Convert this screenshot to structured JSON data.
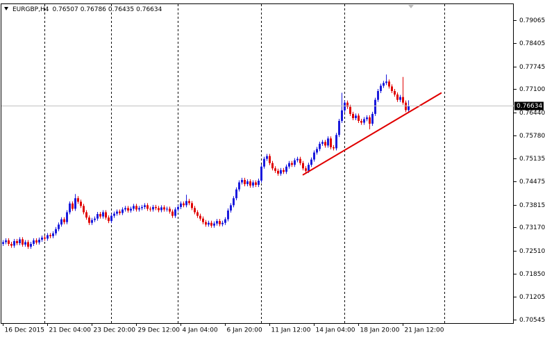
{
  "chart_data": {
    "type": "candlestick",
    "title": "EURGBP,H4",
    "categories": [
      "16 Dec 2015",
      null,
      null,
      null,
      null,
      null,
      null,
      null,
      null,
      null,
      null,
      null,
      null,
      null,
      null,
      null,
      "21 Dec 04:00",
      null,
      null,
      null,
      null,
      null,
      null,
      null,
      null,
      null,
      null,
      null,
      null,
      null,
      null,
      null,
      "23 Dec 20:00",
      null,
      null,
      null,
      null,
      null,
      null,
      null,
      null,
      null,
      null,
      null,
      null,
      null,
      null,
      null,
      "29 Dec 12:00",
      null,
      null,
      null,
      null,
      null,
      null,
      null,
      null,
      null,
      null,
      null,
      null,
      null,
      null,
      null,
      "4 Jan 04:00",
      null,
      null,
      null,
      null,
      null,
      null,
      null,
      null,
      null,
      null,
      null,
      null,
      null,
      null,
      null,
      "6 Jan 20:00",
      null,
      null,
      null,
      null,
      null,
      null,
      null,
      null,
      null,
      null,
      null,
      null,
      null,
      null,
      null,
      "11 Jan 12:00",
      null,
      null,
      null,
      null,
      null,
      null,
      null,
      null,
      null,
      null,
      null,
      null,
      null,
      null,
      null,
      "14 Jan 04:00",
      null,
      null,
      null,
      null,
      null,
      null,
      null,
      null,
      null,
      null,
      null,
      null,
      null,
      null,
      null,
      "18 Jan 20:00",
      null,
      null,
      null,
      null,
      null,
      null,
      null,
      null,
      null,
      null,
      null,
      null,
      null,
      null,
      null,
      "21 Jan 12:00",
      null,
      null
    ],
    "open": [
      0.727,
      0.7275,
      0.728,
      0.727,
      0.7265,
      0.7278,
      0.7272,
      0.7283,
      0.7268,
      0.7275,
      0.7262,
      0.727,
      0.728,
      0.7274,
      0.7282,
      0.7288,
      0.7285,
      0.7295,
      0.7292,
      0.73,
      0.7312,
      0.7325,
      0.734,
      0.7332,
      0.736,
      0.7385,
      0.737,
      0.74,
      0.739,
      0.7378,
      0.736,
      0.7345,
      0.733,
      0.7338,
      0.7342,
      0.7355,
      0.7348,
      0.736,
      0.7345,
      0.7335,
      0.735,
      0.7356,
      0.7362,
      0.7358,
      0.7368,
      0.7372,
      0.7365,
      0.737,
      0.7378,
      0.7368,
      0.7372,
      0.7375,
      0.738,
      0.737,
      0.7368,
      0.7375,
      0.7372,
      0.7366,
      0.7374,
      0.7368,
      0.737,
      0.7362,
      0.735,
      0.7368,
      0.7375,
      0.7385,
      0.738,
      0.7392,
      0.7386,
      0.7372,
      0.736,
      0.735,
      0.7342,
      0.7332,
      0.7325,
      0.733,
      0.7322,
      0.7328,
      0.7335,
      0.7326,
      0.733,
      0.734,
      0.7365,
      0.738,
      0.74,
      0.7425,
      0.7445,
      0.7452,
      0.744,
      0.7448,
      0.7436,
      0.7445,
      0.7438,
      0.745,
      0.749,
      0.7512,
      0.752,
      0.75,
      0.7485,
      0.7478,
      0.747,
      0.748,
      0.7475,
      0.749,
      0.75,
      0.7495,
      0.7508,
      0.7512,
      0.75,
      0.7485,
      0.7478,
      0.7495,
      0.751,
      0.753,
      0.754,
      0.7555,
      0.756,
      0.755,
      0.757,
      0.7545,
      0.7542,
      0.758,
      0.762,
      0.765,
      0.7672,
      0.766,
      0.764,
      0.7628,
      0.7635,
      0.762,
      0.7615,
      0.7625,
      0.763,
      0.7612,
      0.764,
      0.768,
      0.7705,
      0.772,
      0.7728,
      0.7732,
      0.7718,
      0.7705,
      0.7695,
      0.768,
      0.7688,
      0.7672,
      0.76507
    ],
    "high": [
      0.7281,
      0.7286,
      0.7286,
      0.7276,
      0.7284,
      0.7284,
      0.7289,
      0.7289,
      0.7281,
      0.7281,
      0.7276,
      0.7286,
      0.7286,
      0.7288,
      0.7294,
      0.7294,
      0.7301,
      0.7301,
      0.7306,
      0.7318,
      0.7331,
      0.7346,
      0.7346,
      0.7366,
      0.7391,
      0.7391,
      0.7412,
      0.7406,
      0.7396,
      0.7384,
      0.7366,
      0.7351,
      0.7344,
      0.7348,
      0.7361,
      0.7361,
      0.7366,
      0.7366,
      0.7351,
      0.7356,
      0.7362,
      0.7368,
      0.7368,
      0.7374,
      0.7378,
      0.7378,
      0.7376,
      0.7384,
      0.7384,
      0.7378,
      0.7381,
      0.7386,
      0.7386,
      0.7376,
      0.7381,
      0.7381,
      0.7378,
      0.738,
      0.738,
      0.7376,
      0.7376,
      0.7368,
      0.7374,
      0.7381,
      0.7391,
      0.7391,
      0.741,
      0.7398,
      0.7392,
      0.7378,
      0.7366,
      0.7356,
      0.7348,
      0.7338,
      0.7336,
      0.7336,
      0.7334,
      0.7341,
      0.7341,
      0.7336,
      0.7346,
      0.7371,
      0.7386,
      0.7406,
      0.7431,
      0.7451,
      0.7458,
      0.7458,
      0.7454,
      0.7454,
      0.7451,
      0.7451,
      0.7456,
      0.7496,
      0.7518,
      0.7526,
      0.7526,
      0.7506,
      0.7491,
      0.7484,
      0.7486,
      0.7486,
      0.7496,
      0.7506,
      0.7506,
      0.7514,
      0.7518,
      0.7518,
      0.7506,
      0.7491,
      0.7501,
      0.7516,
      0.7536,
      0.7546,
      0.7561,
      0.7566,
      0.7566,
      0.7576,
      0.7576,
      0.7551,
      0.7586,
      0.7626,
      0.77,
      0.7678,
      0.7678,
      0.7666,
      0.7646,
      0.7641,
      0.7641,
      0.7626,
      0.7631,
      0.7636,
      0.7636,
      0.7646,
      0.7686,
      0.7711,
      0.7726,
      0.7734,
      0.7752,
      0.7738,
      0.7724,
      0.7711,
      0.7701,
      0.7694,
      0.7745,
      0.7678,
      0.76786
    ],
    "low": [
      0.7264,
      0.7269,
      0.7264,
      0.7259,
      0.7259,
      0.7266,
      0.7266,
      0.7262,
      0.7262,
      0.7256,
      0.7256,
      0.7264,
      0.7268,
      0.7268,
      0.7276,
      0.7279,
      0.7279,
      0.7286,
      0.7286,
      0.7294,
      0.7306,
      0.7319,
      0.7326,
      0.7326,
      0.7354,
      0.7364,
      0.7364,
      0.7384,
      0.7372,
      0.7354,
      0.7339,
      0.7324,
      0.7324,
      0.7332,
      0.7336,
      0.7342,
      0.7342,
      0.7339,
      0.7329,
      0.7329,
      0.7344,
      0.735,
      0.7352,
      0.7352,
      0.7362,
      0.7359,
      0.7359,
      0.7364,
      0.7362,
      0.7362,
      0.7366,
      0.7369,
      0.7364,
      0.7362,
      0.7362,
      0.7366,
      0.736,
      0.736,
      0.7362,
      0.7362,
      0.7356,
      0.7344,
      0.7344,
      0.7362,
      0.7369,
      0.7374,
      0.7374,
      0.738,
      0.7366,
      0.7354,
      0.7344,
      0.7336,
      0.7326,
      0.7319,
      0.7319,
      0.7316,
      0.7316,
      0.7322,
      0.732,
      0.732,
      0.7324,
      0.7334,
      0.7359,
      0.7374,
      0.7394,
      0.7419,
      0.7439,
      0.7434,
      0.7434,
      0.743,
      0.743,
      0.7432,
      0.7432,
      0.7444,
      0.7484,
      0.7506,
      0.7494,
      0.7479,
      0.7472,
      0.7464,
      0.7464,
      0.7469,
      0.7469,
      0.7484,
      0.7489,
      0.7489,
      0.7502,
      0.7494,
      0.7479,
      0.7472,
      0.7472,
      0.7489,
      0.7504,
      0.7524,
      0.7534,
      0.7549,
      0.7544,
      0.7544,
      0.7539,
      0.7536,
      0.7536,
      0.7574,
      0.7614,
      0.7644,
      0.7654,
      0.7634,
      0.7622,
      0.7622,
      0.7614,
      0.7609,
      0.7609,
      0.7619,
      0.7596,
      0.7606,
      0.7634,
      0.7674,
      0.7699,
      0.7714,
      0.7722,
      0.7712,
      0.7699,
      0.7689,
      0.7674,
      0.7674,
      0.7666,
      0.7645,
      0.76435
    ],
    "close": [
      0.7275,
      0.728,
      0.727,
      0.7265,
      0.7278,
      0.7272,
      0.7283,
      0.7268,
      0.7275,
      0.7262,
      0.727,
      0.728,
      0.7274,
      0.7282,
      0.7288,
      0.7285,
      0.7295,
      0.7292,
      0.73,
      0.7312,
      0.7325,
      0.734,
      0.7332,
      0.736,
      0.7385,
      0.737,
      0.74,
      0.739,
      0.7378,
      0.736,
      0.7345,
      0.733,
      0.7338,
      0.7342,
      0.7355,
      0.7348,
      0.736,
      0.7345,
      0.7335,
      0.735,
      0.7356,
      0.7362,
      0.7358,
      0.7368,
      0.7372,
      0.7365,
      0.737,
      0.7378,
      0.7368,
      0.7372,
      0.7375,
      0.738,
      0.737,
      0.7368,
      0.7375,
      0.7372,
      0.7366,
      0.7374,
      0.7368,
      0.737,
      0.7362,
      0.735,
      0.7368,
      0.7375,
      0.7385,
      0.738,
      0.7392,
      0.7386,
      0.7372,
      0.736,
      0.735,
      0.7342,
      0.7332,
      0.7325,
      0.733,
      0.7322,
      0.7328,
      0.7335,
      0.7326,
      0.733,
      0.734,
      0.7365,
      0.738,
      0.74,
      0.7425,
      0.7445,
      0.7452,
      0.744,
      0.7448,
      0.7436,
      0.7445,
      0.7438,
      0.745,
      0.749,
      0.7512,
      0.752,
      0.75,
      0.7485,
      0.7478,
      0.747,
      0.748,
      0.7475,
      0.749,
      0.75,
      0.7495,
      0.7508,
      0.7512,
      0.75,
      0.7485,
      0.7478,
      0.7495,
      0.751,
      0.753,
      0.754,
      0.7555,
      0.756,
      0.755,
      0.757,
      0.7545,
      0.7542,
      0.758,
      0.762,
      0.765,
      0.7672,
      0.766,
      0.764,
      0.7628,
      0.7635,
      0.762,
      0.7615,
      0.7625,
      0.763,
      0.7612,
      0.764,
      0.768,
      0.7705,
      0.772,
      0.7728,
      0.7732,
      0.7718,
      0.7705,
      0.7695,
      0.768,
      0.7688,
      0.7672,
      0.76507,
      0.76634
    ],
    "up_color": "#1a1adc",
    "down_color": "#e00000",
    "trendline": {
      "start": [
        108,
        0.7466
      ],
      "end": [
        158,
        0.77
      ],
      "color": "#e00000"
    },
    "ylim": [
      0.70446,
      0.79522
    ],
    "yticks": [
      0.79065,
      0.78405,
      0.77745,
      {
        "value": 0.771,
        "label": "0.77100"
      },
      {
        "value": 0.7644,
        "label": "0.76440"
      },
      {
        "value": 0.7578,
        "label": "0.75780"
      },
      0.75135,
      0.74475,
      0.73815,
      {
        "value": 0.7317,
        "label": "0.73170"
      },
      {
        "value": 0.7251,
        "label": "0.72510"
      },
      {
        "value": 0.7185,
        "label": "0.71850"
      },
      0.71205,
      0.70545
    ]
  }
}
